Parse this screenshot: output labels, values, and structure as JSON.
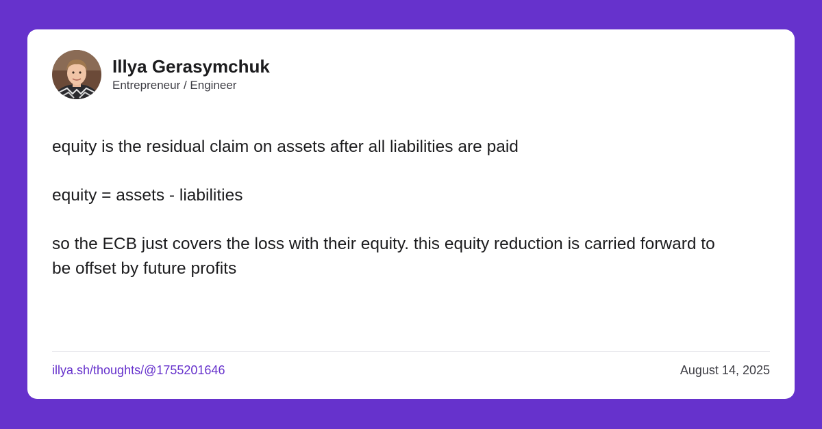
{
  "author": {
    "name": "Illya Gerasymchuk",
    "title": "Entrepreneur / Engineer"
  },
  "post": {
    "paragraphs": [
      "equity is the residual claim on assets after all liabilities are paid",
      "equity = assets - liabilities",
      "so the ECB just covers the loss with their equity. this equity reduction is carried forward to be offset by future profits"
    ]
  },
  "footer": {
    "link": "illya.sh/thoughts/@1755201646",
    "date": "August 14, 2025"
  },
  "colors": {
    "background": "#6632CC",
    "card": "#FFFFFF",
    "link": "#6632CC"
  }
}
